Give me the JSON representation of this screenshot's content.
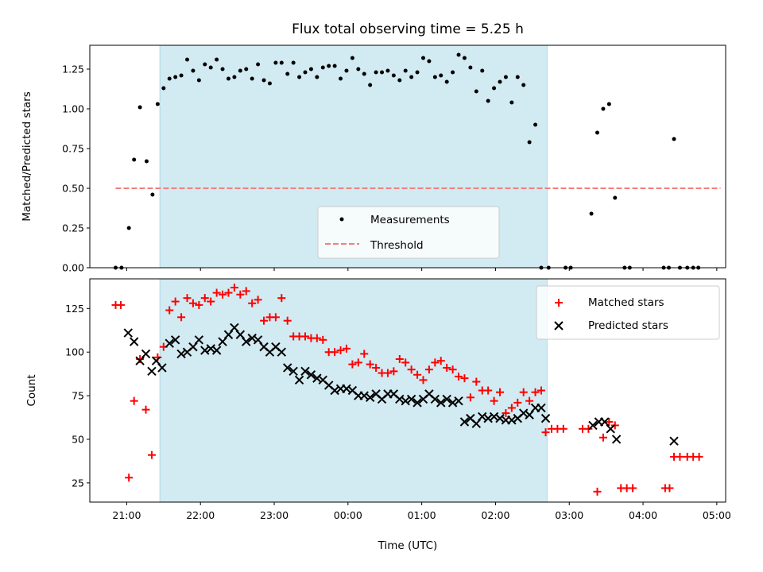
{
  "figure": {
    "title": "Flux total observing time = 5.25 h",
    "colors": {
      "shade": "#add8e6",
      "measurement": "#000000",
      "threshold": "#f08080",
      "matched": "#ff0000",
      "predicted": "#000000"
    }
  },
  "chart_data": [
    {
      "type": "scatter",
      "panel": "top",
      "ylabel": "Matched/Predicted stars",
      "xlabel": "",
      "ylim": [
        0,
        1.4
      ],
      "yticks": [
        0.0,
        0.25,
        0.5,
        0.75,
        1.0,
        1.25
      ],
      "ytick_labels": [
        "0.00",
        "0.25",
        "0.50",
        "0.75",
        "1.00",
        "1.25"
      ],
      "x_unit": "hours since 20:00 UTC",
      "xlim": [
        0.5,
        9.12
      ],
      "xticks": [
        1,
        2,
        3,
        4,
        5,
        6,
        7,
        8,
        9
      ],
      "shaded_span": [
        1.45,
        6.7
      ],
      "legend": {
        "position": "lower-center",
        "entries": [
          "Measurements",
          "Threshold"
        ]
      },
      "threshold": {
        "name": "Threshold",
        "y": 0.5,
        "x": [
          0.85,
          9.05
        ]
      },
      "series": [
        {
          "name": "Measurements",
          "marker": "dot",
          "points": [
            [
              0.85,
              0
            ],
            [
              0.93,
              0
            ],
            [
              1.03,
              0.25
            ],
            [
              1.1,
              0.68
            ],
            [
              1.18,
              1.01
            ],
            [
              1.27,
              0.67
            ],
            [
              1.35,
              0.46
            ],
            [
              1.42,
              1.03
            ],
            [
              1.5,
              1.13
            ],
            [
              1.58,
              1.19
            ],
            [
              1.66,
              1.2
            ],
            [
              1.74,
              1.21
            ],
            [
              1.82,
              1.31
            ],
            [
              1.9,
              1.24
            ],
            [
              1.98,
              1.18
            ],
            [
              2.06,
              1.28
            ],
            [
              2.14,
              1.26
            ],
            [
              2.22,
              1.31
            ],
            [
              2.3,
              1.25
            ],
            [
              2.38,
              1.19
            ],
            [
              2.46,
              1.2
            ],
            [
              2.54,
              1.24
            ],
            [
              2.62,
              1.25
            ],
            [
              2.7,
              1.19
            ],
            [
              2.78,
              1.28
            ],
            [
              2.86,
              1.18
            ],
            [
              2.94,
              1.16
            ],
            [
              3.02,
              1.29
            ],
            [
              3.1,
              1.29
            ],
            [
              3.18,
              1.22
            ],
            [
              3.26,
              1.29
            ],
            [
              3.34,
              1.2
            ],
            [
              3.42,
              1.23
            ],
            [
              3.5,
              1.25
            ],
            [
              3.58,
              1.2
            ],
            [
              3.66,
              1.26
            ],
            [
              3.74,
              1.27
            ],
            [
              3.82,
              1.27
            ],
            [
              3.9,
              1.19
            ],
            [
              3.98,
              1.24
            ],
            [
              4.06,
              1.32
            ],
            [
              4.14,
              1.25
            ],
            [
              4.22,
              1.22
            ],
            [
              4.3,
              1.15
            ],
            [
              4.38,
              1.23
            ],
            [
              4.46,
              1.23
            ],
            [
              4.54,
              1.24
            ],
            [
              4.62,
              1.21
            ],
            [
              4.7,
              1.18
            ],
            [
              4.78,
              1.24
            ],
            [
              4.86,
              1.2
            ],
            [
              4.94,
              1.23
            ],
            [
              5.02,
              1.32
            ],
            [
              5.1,
              1.3
            ],
            [
              5.18,
              1.2
            ],
            [
              5.26,
              1.21
            ],
            [
              5.34,
              1.17
            ],
            [
              5.42,
              1.23
            ],
            [
              5.5,
              1.34
            ],
            [
              5.58,
              1.32
            ],
            [
              5.66,
              1.26
            ],
            [
              5.74,
              1.11
            ],
            [
              5.82,
              1.24
            ],
            [
              5.9,
              1.05
            ],
            [
              5.98,
              1.13
            ],
            [
              6.06,
              1.17
            ],
            [
              6.14,
              1.2
            ],
            [
              6.22,
              1.04
            ],
            [
              6.3,
              1.2
            ],
            [
              6.38,
              1.15
            ],
            [
              6.46,
              0.79
            ],
            [
              6.54,
              0.9
            ],
            [
              6.62,
              0
            ],
            [
              6.72,
              0
            ],
            [
              6.95,
              0
            ],
            [
              7.02,
              0
            ],
            [
              7.3,
              0.34
            ],
            [
              7.38,
              0.85
            ],
            [
              7.46,
              1.0
            ],
            [
              7.54,
              1.03
            ],
            [
              7.62,
              0.44
            ],
            [
              7.75,
              0
            ],
            [
              7.82,
              0
            ],
            [
              8.28,
              0
            ],
            [
              8.35,
              0
            ],
            [
              8.42,
              0.81
            ],
            [
              8.5,
              0
            ],
            [
              8.6,
              0
            ],
            [
              8.68,
              0
            ],
            [
              8.75,
              0
            ]
          ]
        }
      ]
    },
    {
      "type": "scatter",
      "panel": "bottom",
      "ylabel": "Count",
      "xlabel": "Time (UTC)",
      "ylim": [
        14,
        142
      ],
      "yticks": [
        25,
        50,
        75,
        100,
        125
      ],
      "ytick_labels": [
        "25",
        "50",
        "75",
        "100",
        "125"
      ],
      "x_unit": "hours since 20:00 UTC",
      "xlim": [
        0.5,
        9.12
      ],
      "xticks": [
        1,
        2,
        3,
        4,
        5,
        6,
        7,
        8,
        9
      ],
      "xtick_labels": [
        "21:00",
        "22:00",
        "23:00",
        "00:00",
        "01:00",
        "02:00",
        "03:00",
        "04:00",
        "05:00"
      ],
      "shaded_span": [
        1.45,
        6.7
      ],
      "legend": {
        "position": "top-right",
        "entries": [
          "Matched stars",
          "Predicted stars"
        ]
      },
      "series": [
        {
          "name": "Matched stars",
          "marker": "plus",
          "points": [
            [
              0.85,
              127
            ],
            [
              0.92,
              127
            ],
            [
              1.03,
              28
            ],
            [
              1.1,
              72
            ],
            [
              1.18,
              96
            ],
            [
              1.26,
              67
            ],
            [
              1.34,
              41
            ],
            [
              1.42,
              97
            ],
            [
              1.5,
              103
            ],
            [
              1.58,
              124
            ],
            [
              1.66,
              129
            ],
            [
              1.74,
              120
            ],
            [
              1.82,
              131
            ],
            [
              1.9,
              128
            ],
            [
              1.98,
              127
            ],
            [
              2.06,
              131
            ],
            [
              2.14,
              129
            ],
            [
              2.22,
              134
            ],
            [
              2.3,
              133
            ],
            [
              2.38,
              134
            ],
            [
              2.46,
              137
            ],
            [
              2.54,
              133
            ],
            [
              2.62,
              135
            ],
            [
              2.7,
              128
            ],
            [
              2.78,
              130
            ],
            [
              2.86,
              118
            ],
            [
              2.94,
              120
            ],
            [
              3.02,
              120
            ],
            [
              3.1,
              131
            ],
            [
              3.18,
              118
            ],
            [
              3.26,
              109
            ],
            [
              3.34,
              109
            ],
            [
              3.42,
              109
            ],
            [
              3.5,
              108
            ],
            [
              3.58,
              108
            ],
            [
              3.66,
              107
            ],
            [
              3.74,
              100
            ],
            [
              3.82,
              100
            ],
            [
              3.9,
              101
            ],
            [
              3.98,
              102
            ],
            [
              4.06,
              93
            ],
            [
              4.14,
              94
            ],
            [
              4.22,
              99
            ],
            [
              4.3,
              93
            ],
            [
              4.38,
              91
            ],
            [
              4.46,
              88
            ],
            [
              4.54,
              88
            ],
            [
              4.62,
              89
            ],
            [
              4.7,
              96
            ],
            [
              4.78,
              94
            ],
            [
              4.86,
              90
            ],
            [
              4.94,
              87
            ],
            [
              5.02,
              84
            ],
            [
              5.1,
              90
            ],
            [
              5.18,
              94
            ],
            [
              5.26,
              95
            ],
            [
              5.34,
              91
            ],
            [
              5.42,
              90
            ],
            [
              5.5,
              86
            ],
            [
              5.58,
              85
            ],
            [
              5.66,
              74
            ],
            [
              5.74,
              83
            ],
            [
              5.82,
              78
            ],
            [
              5.9,
              78
            ],
            [
              5.98,
              72
            ],
            [
              6.06,
              77
            ],
            [
              6.14,
              65
            ],
            [
              6.22,
              68
            ],
            [
              6.3,
              71
            ],
            [
              6.38,
              77
            ],
            [
              6.46,
              72
            ],
            [
              6.54,
              77
            ],
            [
              6.62,
              78
            ],
            [
              6.68,
              54
            ],
            [
              6.76,
              56
            ],
            [
              6.84,
              56
            ],
            [
              6.92,
              56
            ],
            [
              7.18,
              56
            ],
            [
              7.26,
              56
            ],
            [
              7.38,
              20
            ],
            [
              7.46,
              51
            ],
            [
              7.54,
              60
            ],
            [
              7.62,
              58
            ],
            [
              7.7,
              22
            ],
            [
              7.78,
              22
            ],
            [
              7.86,
              22
            ],
            [
              8.3,
              22
            ],
            [
              8.36,
              22
            ],
            [
              8.42,
              40
            ],
            [
              8.5,
              40
            ],
            [
              8.6,
              40
            ],
            [
              8.68,
              40
            ],
            [
              8.76,
              40
            ]
          ]
        },
        {
          "name": "Predicted stars",
          "marker": "x",
          "points": [
            [
              1.02,
              111
            ],
            [
              1.1,
              106
            ],
            [
              1.18,
              95
            ],
            [
              1.26,
              99
            ],
            [
              1.34,
              89
            ],
            [
              1.4,
              95
            ],
            [
              1.48,
              91
            ],
            [
              1.58,
              105
            ],
            [
              1.66,
              107
            ],
            [
              1.74,
              99
            ],
            [
              1.82,
              100
            ],
            [
              1.9,
              103
            ],
            [
              1.98,
              107
            ],
            [
              2.06,
              101
            ],
            [
              2.14,
              102
            ],
            [
              2.22,
              101
            ],
            [
              2.3,
              106
            ],
            [
              2.38,
              110
            ],
            [
              2.46,
              114
            ],
            [
              2.54,
              110
            ],
            [
              2.62,
              106
            ],
            [
              2.7,
              108
            ],
            [
              2.78,
              107
            ],
            [
              2.86,
              103
            ],
            [
              2.94,
              100
            ],
            [
              3.02,
              103
            ],
            [
              3.1,
              100
            ],
            [
              3.18,
              91
            ],
            [
              3.26,
              89
            ],
            [
              3.34,
              84
            ],
            [
              3.42,
              89
            ],
            [
              3.5,
              87
            ],
            [
              3.58,
              85
            ],
            [
              3.66,
              84
            ],
            [
              3.74,
              81
            ],
            [
              3.82,
              78
            ],
            [
              3.9,
              79
            ],
            [
              3.98,
              79
            ],
            [
              4.06,
              78
            ],
            [
              4.14,
              75
            ],
            [
              4.22,
              75
            ],
            [
              4.3,
              74
            ],
            [
              4.38,
              76
            ],
            [
              4.46,
              73
            ],
            [
              4.54,
              76
            ],
            [
              4.62,
              76
            ],
            [
              4.7,
              73
            ],
            [
              4.78,
              72
            ],
            [
              4.86,
              73
            ],
            [
              4.94,
              71
            ],
            [
              5.02,
              73
            ],
            [
              5.1,
              76
            ],
            [
              5.18,
              73
            ],
            [
              5.26,
              71
            ],
            [
              5.34,
              73
            ],
            [
              5.42,
              71
            ],
            [
              5.5,
              72
            ],
            [
              5.58,
              60
            ],
            [
              5.66,
              62
            ],
            [
              5.74,
              59
            ],
            [
              5.82,
              63
            ],
            [
              5.9,
              62
            ],
            [
              5.98,
              63
            ],
            [
              6.06,
              62
            ],
            [
              6.14,
              61
            ],
            [
              6.22,
              61
            ],
            [
              6.3,
              62
            ],
            [
              6.38,
              65
            ],
            [
              6.46,
              64
            ],
            [
              6.54,
              68
            ],
            [
              6.62,
              68
            ],
            [
              6.68,
              62
            ],
            [
              7.32,
              58
            ],
            [
              7.4,
              60
            ],
            [
              7.48,
              60
            ],
            [
              7.56,
              56
            ],
            [
              7.64,
              50
            ],
            [
              8.42,
              49
            ]
          ]
        }
      ]
    }
  ]
}
